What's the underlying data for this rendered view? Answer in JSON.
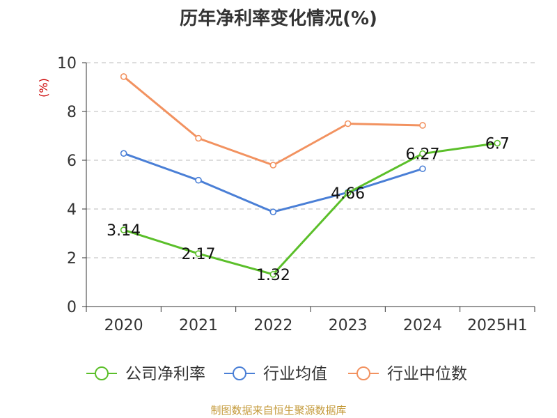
{
  "chart_data": {
    "type": "line",
    "title": "历年净利率变化情况(%)",
    "ylabel": "(%)",
    "categories": [
      "2020",
      "2021",
      "2022",
      "2023",
      "2024",
      "2025H1"
    ],
    "ylim": [
      0,
      10
    ],
    "yticks": [
      0,
      2,
      4,
      6,
      8,
      10
    ],
    "grid": true,
    "legend_position": "bottom",
    "series": [
      {
        "name": "公司净利率",
        "color": "#5bbf2a",
        "values": [
          3.14,
          2.17,
          1.32,
          4.66,
          6.27,
          6.7
        ],
        "labels": [
          "3.14",
          "2.17",
          "1.32",
          "4.66",
          "6.27",
          "6.7"
        ]
      },
      {
        "name": "行业均值",
        "color": "#4a7fd6",
        "values": [
          6.28,
          5.18,
          3.88,
          4.68,
          5.65,
          null
        ]
      },
      {
        "name": "行业中位数",
        "color": "#f29260",
        "values": [
          9.43,
          6.9,
          5.8,
          7.5,
          7.43,
          null
        ]
      }
    ]
  },
  "source": "制图数据来自恒生聚源数据库"
}
